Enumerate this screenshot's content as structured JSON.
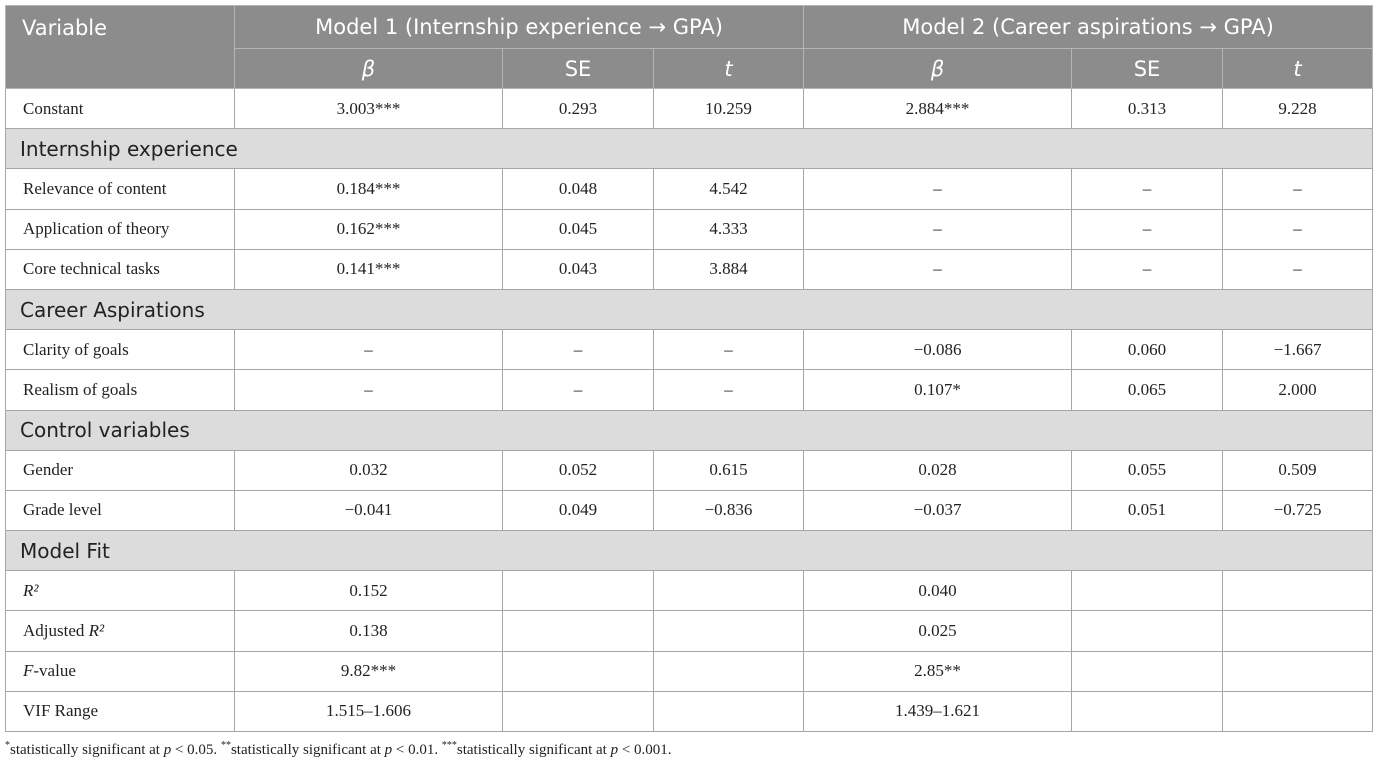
{
  "table": {
    "header": {
      "variable": "Variable",
      "models": [
        "Model 1 (Internship experience → GPA)",
        "Model 2 (Career aspirations → GPA)"
      ],
      "columns": [
        [
          {
            "text": "β",
            "italic": true
          }
        ],
        "SE",
        [
          {
            "text": "t",
            "italic": true
          }
        ],
        [
          {
            "text": "β",
            "italic": true
          }
        ],
        "SE",
        [
          {
            "text": "t",
            "italic": true
          }
        ]
      ]
    },
    "rows": [
      {
        "cells": [
          "Constant",
          "3.003***",
          "0.293",
          "10.259",
          "2.884***",
          "0.313",
          "9.228"
        ]
      },
      {
        "section": "Internship experience"
      },
      {
        "cells": [
          "Relevance of content",
          "0.184***",
          "0.048",
          "4.542",
          "–",
          "–",
          "–"
        ]
      },
      {
        "cells": [
          "Application of theory",
          "0.162***",
          "0.045",
          "4.333",
          "–",
          "–",
          "–"
        ]
      },
      {
        "cells": [
          "Core technical tasks",
          "0.141***",
          "0.043",
          "3.884",
          "–",
          "–",
          "–"
        ]
      },
      {
        "section": "Career Aspirations"
      },
      {
        "cells": [
          "Clarity of goals",
          "–",
          "–",
          "–",
          "−0.086",
          "0.060",
          "−1.667"
        ]
      },
      {
        "cells": [
          "Realism of goals",
          "–",
          "–",
          "–",
          "0.107*",
          "0.065",
          "2.000"
        ]
      },
      {
        "section": "Control variables"
      },
      {
        "cells": [
          "Gender",
          "0.032",
          "0.052",
          "0.615",
          "0.028",
          "0.055",
          "0.509"
        ]
      },
      {
        "cells": [
          "Grade level",
          "−0.041",
          "0.049",
          "−0.836",
          "−0.037",
          "0.051",
          "−0.725"
        ]
      },
      {
        "section": "Model Fit"
      },
      {
        "cells": [
          [
            {
              "text": "R²",
              "italic": true
            }
          ],
          "0.152",
          null,
          null,
          "0.040",
          null,
          null
        ]
      },
      {
        "cells": [
          [
            {
              "text": "Adjusted "
            },
            {
              "text": "R²",
              "italic": true
            }
          ],
          "0.138",
          null,
          null,
          "0.025",
          null,
          null
        ]
      },
      {
        "cells": [
          [
            {
              "text": "F",
              "italic": true
            },
            {
              "text": "-value"
            }
          ],
          "9.82***",
          null,
          null,
          "2.85**",
          null,
          null
        ]
      },
      {
        "cells": [
          "VIF Range",
          "1.515–1.606",
          null,
          null,
          "1.439–1.621",
          null,
          null
        ]
      }
    ],
    "footnote": [
      {
        "text": "*",
        "sup": true
      },
      {
        "text": "statistically significant at "
      },
      {
        "text": "p",
        "italic": true
      },
      {
        "text": " < 0.05. "
      },
      {
        "text": "**",
        "sup": true
      },
      {
        "text": "statistically significant at "
      },
      {
        "text": "p",
        "italic": true
      },
      {
        "text": " < 0.01. "
      },
      {
        "text": "***",
        "sup": true
      },
      {
        "text": "statistically significant at "
      },
      {
        "text": "p",
        "italic": true
      },
      {
        "text": " < 0.001."
      }
    ]
  }
}
